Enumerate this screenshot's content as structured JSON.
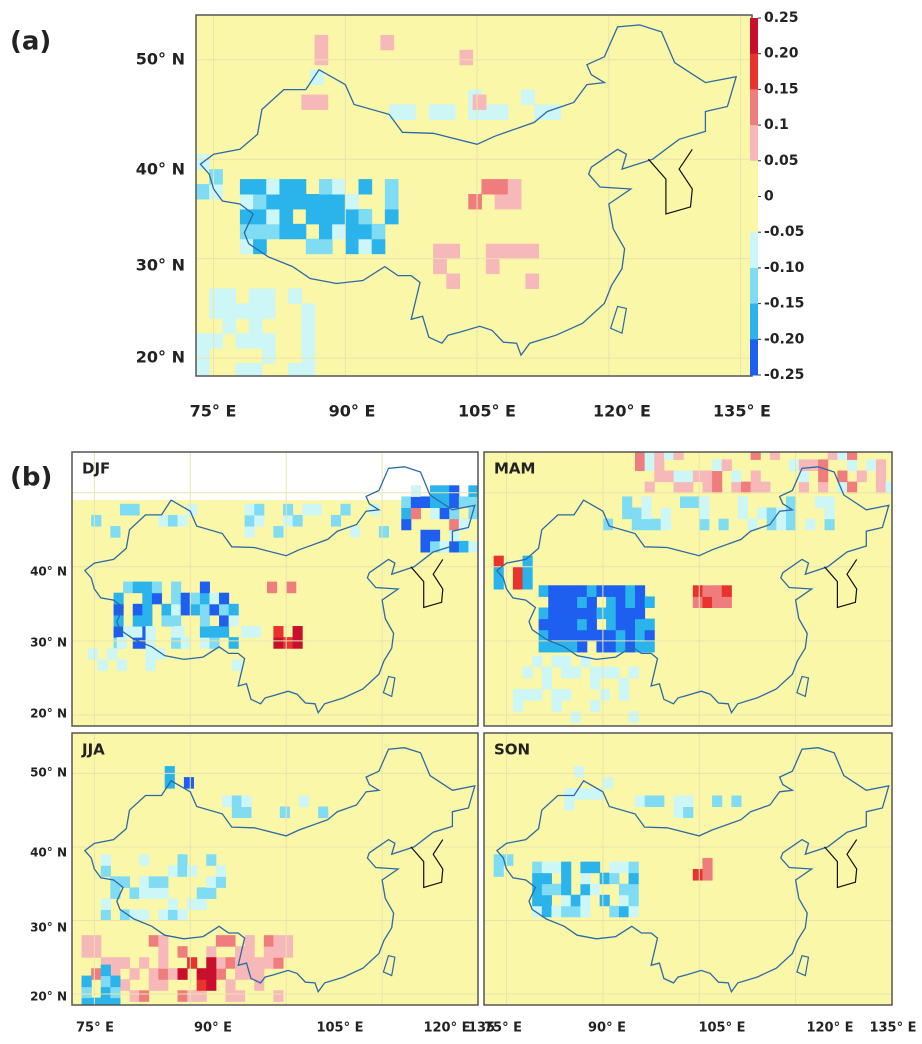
{
  "panel_a": {
    "label": "(a)",
    "y_labels": [
      "50° N",
      "40° N",
      "30° N",
      "20° N"
    ],
    "x_labels": [
      "75° E",
      "90° E",
      "105° E",
      "120° E",
      "135° E"
    ]
  },
  "colorbar": {
    "ticks": [
      0.25,
      {
        "value": 0.2,
        "label": "0.20"
      },
      0.15,
      0.1,
      0.05,
      0,
      -0.05,
      {
        "value": -0.1,
        "label": "-0.10"
      },
      -0.15,
      {
        "value": -0.2,
        "label": "-0.20"
      },
      -0.25
    ],
    "colors": [
      "#c8102e",
      "#e8332f",
      "#f07d7d",
      "#f6b8b8",
      "#fbf7a8",
      "#fbf7a8",
      "#cdf6f7",
      "#7fdcf2",
      "#2bb3ec",
      "#1f5ff0"
    ]
  },
  "panel_b": {
    "label": "(b)",
    "subplots": [
      {
        "title": "DJF",
        "y_labels": [
          "40° N",
          "30° N",
          "20° N"
        ]
      },
      {
        "title": "MAM"
      },
      {
        "title": "JJA",
        "y_labels": [
          "50° N",
          "40° N",
          "30° N",
          "20° N"
        ]
      },
      {
        "title": "SON"
      }
    ],
    "x_labels_left": [
      "75° E",
      "90° E",
      "105° E",
      "120° E",
      "135"
    ],
    "x_labels_right": [
      "75° E",
      "90° E",
      "105° E",
      "120° E",
      "135° E"
    ]
  }
}
